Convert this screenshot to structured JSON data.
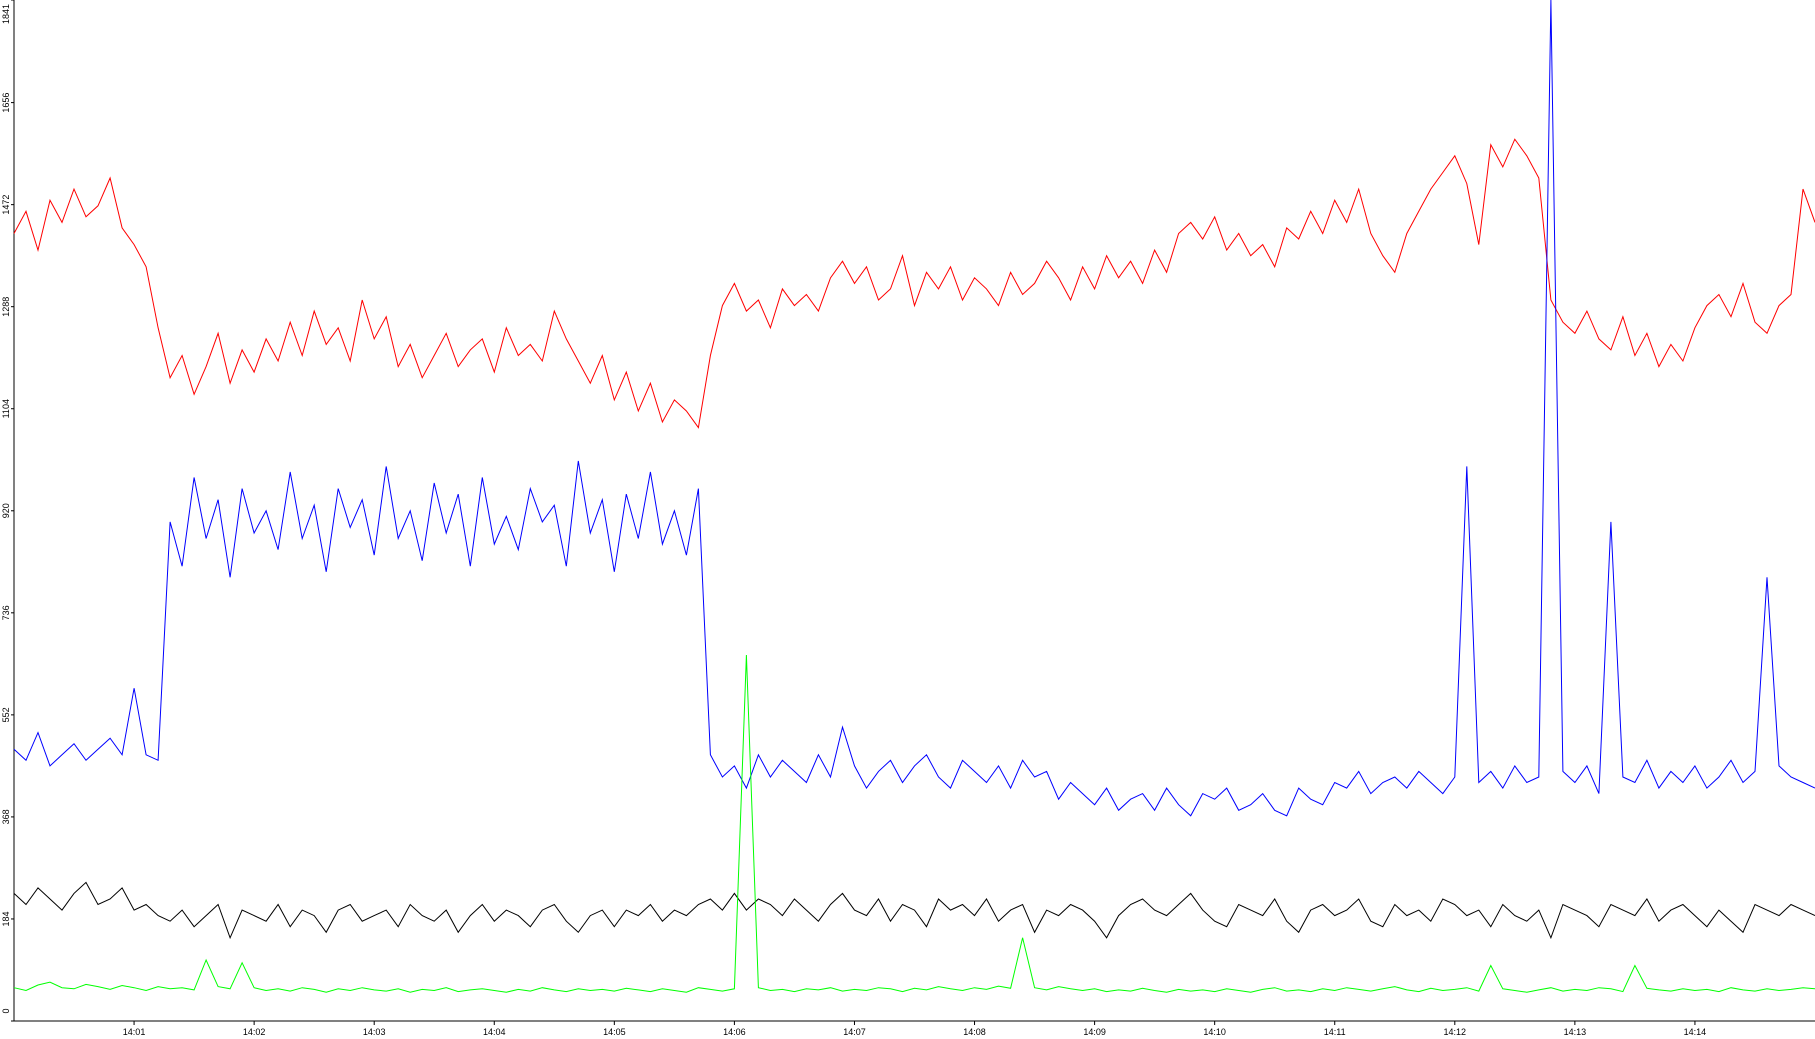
{
  "chart_data": {
    "type": "line",
    "x": [
      0,
      0.1,
      0.2,
      0.3,
      0.4,
      0.5,
      0.6,
      0.7,
      0.8,
      0.9,
      1,
      1.1,
      1.2,
      1.3,
      1.4,
      1.5,
      1.6,
      1.7,
      1.8,
      1.9,
      2,
      2.1,
      2.2,
      2.3,
      2.4,
      2.5,
      2.6,
      2.7,
      2.8,
      2.9,
      3,
      3.1,
      3.2,
      3.3,
      3.4,
      3.5,
      3.6,
      3.7,
      3.8,
      3.9,
      4,
      4.1,
      4.2,
      4.3,
      4.4,
      4.5,
      4.6,
      4.7,
      4.8,
      4.9,
      5,
      5.1,
      5.2,
      5.3,
      5.4,
      5.5,
      5.6,
      5.7,
      5.8,
      5.9,
      6,
      6.1,
      6.2,
      6.3,
      6.4,
      6.5,
      6.6,
      6.7,
      6.8,
      6.9,
      7,
      7.1,
      7.2,
      7.3,
      7.4,
      7.5,
      7.6,
      7.7,
      7.8,
      7.9,
      8,
      8.1,
      8.2,
      8.3,
      8.4,
      8.5,
      8.6,
      8.7,
      8.8,
      8.9,
      9,
      9.1,
      9.2,
      9.3,
      9.4,
      9.5,
      9.6,
      9.7,
      9.8,
      9.9,
      10,
      10.1,
      10.2,
      10.3,
      10.4,
      10.5,
      10.6,
      10.7,
      10.8,
      10.9,
      11,
      11.1,
      11.2,
      11.3,
      11.4,
      11.5,
      11.6,
      11.7,
      11.8,
      11.9,
      12,
      12.1,
      12.2,
      12.3,
      12.4,
      12.5,
      12.6,
      12.7,
      12.8,
      12.9,
      13,
      13.1,
      13.2,
      13.3,
      13.4,
      13.5,
      13.6,
      13.7,
      13.8,
      13.9,
      14,
      14.1,
      14.2,
      14.3,
      14.4,
      14.5,
      14.6,
      14.7,
      14.8,
      14.9,
      15
    ],
    "series": [
      {
        "color": "#ff0000",
        "values": [
          1420,
          1460,
          1390,
          1480,
          1440,
          1500,
          1450,
          1470,
          1520,
          1430,
          1400,
          1360,
          1250,
          1160,
          1200,
          1130,
          1180,
          1240,
          1150,
          1210,
          1170,
          1230,
          1190,
          1260,
          1200,
          1280,
          1220,
          1250,
          1190,
          1300,
          1230,
          1270,
          1180,
          1220,
          1160,
          1200,
          1240,
          1180,
          1210,
          1230,
          1170,
          1250,
          1200,
          1220,
          1190,
          1280,
          1230,
          1190,
          1150,
          1200,
          1120,
          1170,
          1100,
          1150,
          1080,
          1120,
          1100,
          1070,
          1200,
          1290,
          1330,
          1280,
          1300,
          1250,
          1320,
          1290,
          1310,
          1280,
          1340,
          1370,
          1330,
          1360,
          1300,
          1320,
          1380,
          1290,
          1350,
          1320,
          1360,
          1300,
          1340,
          1320,
          1290,
          1350,
          1310,
          1330,
          1370,
          1340,
          1300,
          1360,
          1320,
          1380,
          1340,
          1370,
          1330,
          1390,
          1350,
          1420,
          1440,
          1410,
          1450,
          1390,
          1420,
          1380,
          1400,
          1360,
          1430,
          1410,
          1460,
          1420,
          1480,
          1440,
          1500,
          1420,
          1380,
          1350,
          1420,
          1460,
          1500,
          1530,
          1560,
          1510,
          1400,
          1580,
          1540,
          1590,
          1560,
          1520,
          1300,
          1260,
          1240,
          1280,
          1230,
          1210,
          1270,
          1200,
          1240,
          1180,
          1220,
          1190,
          1250,
          1290,
          1310,
          1270,
          1330,
          1260,
          1240,
          1290,
          1310,
          1500,
          1440
        ]
      },
      {
        "color": "#0000ff",
        "values": [
          490,
          470,
          520,
          460,
          480,
          500,
          470,
          490,
          510,
          480,
          600,
          480,
          470,
          900,
          820,
          980,
          870,
          940,
          800,
          960,
          880,
          920,
          850,
          990,
          870,
          930,
          810,
          960,
          890,
          940,
          840,
          1000,
          870,
          920,
          830,
          970,
          880,
          950,
          820,
          980,
          860,
          910,
          850,
          960,
          900,
          930,
          820,
          1010,
          880,
          940,
          810,
          950,
          870,
          990,
          860,
          920,
          840,
          960,
          480,
          440,
          460,
          420,
          480,
          440,
          470,
          450,
          430,
          480,
          440,
          530,
          460,
          420,
          450,
          470,
          430,
          460,
          480,
          440,
          420,
          470,
          450,
          430,
          460,
          420,
          470,
          440,
          450,
          400,
          430,
          410,
          390,
          420,
          380,
          400,
          410,
          380,
          420,
          390,
          370,
          410,
          400,
          420,
          380,
          390,
          410,
          380,
          370,
          420,
          400,
          390,
          430,
          420,
          450,
          410,
          430,
          440,
          420,
          450,
          430,
          410,
          440,
          1000,
          430,
          450,
          420,
          460,
          430,
          440,
          1841,
          450,
          430,
          460,
          410,
          900,
          440,
          430,
          470,
          420,
          450,
          430,
          460,
          420,
          440,
          470,
          430,
          450,
          800,
          460,
          440,
          430,
          420
        ]
      },
      {
        "color": "#000000",
        "values": [
          230,
          210,
          240,
          220,
          200,
          230,
          250,
          210,
          220,
          240,
          200,
          210,
          190,
          180,
          200,
          170,
          190,
          210,
          150,
          200,
          190,
          180,
          210,
          170,
          200,
          190,
          160,
          200,
          210,
          180,
          190,
          200,
          170,
          210,
          190,
          180,
          200,
          160,
          190,
          210,
          180,
          200,
          190,
          170,
          200,
          210,
          180,
          160,
          190,
          200,
          170,
          200,
          190,
          210,
          180,
          200,
          190,
          210,
          220,
          200,
          230,
          200,
          220,
          210,
          190,
          220,
          200,
          180,
          210,
          230,
          200,
          190,
          220,
          180,
          210,
          200,
          170,
          220,
          200,
          210,
          190,
          220,
          180,
          200,
          210,
          160,
          200,
          190,
          210,
          200,
          180,
          150,
          190,
          210,
          220,
          200,
          190,
          210,
          230,
          200,
          180,
          170,
          210,
          200,
          190,
          220,
          180,
          160,
          200,
          210,
          190,
          200,
          220,
          180,
          170,
          210,
          190,
          200,
          180,
          220,
          210,
          190,
          200,
          170,
          210,
          190,
          180,
          200,
          150,
          210,
          200,
          190,
          170,
          210,
          200,
          190,
          220,
          180,
          200,
          210,
          190,
          170,
          200,
          180,
          160,
          210,
          200,
          190,
          210,
          200,
          190
        ]
      },
      {
        "color": "#00ff00",
        "values": [
          60,
          55,
          65,
          70,
          60,
          58,
          66,
          62,
          57,
          64,
          60,
          55,
          62,
          58,
          60,
          56,
          110,
          62,
          58,
          105,
          60,
          55,
          58,
          54,
          60,
          57,
          52,
          58,
          55,
          60,
          56,
          54,
          58,
          52,
          57,
          55,
          60,
          53,
          56,
          58,
          55,
          52,
          57,
          54,
          60,
          56,
          53,
          58,
          55,
          57,
          54,
          59,
          56,
          53,
          58,
          55,
          52,
          60,
          57,
          54,
          58,
          660,
          60,
          55,
          57,
          53,
          58,
          56,
          60,
          54,
          57,
          55,
          60,
          58,
          53,
          59,
          56,
          62,
          58,
          55,
          60,
          57,
          63,
          59,
          150,
          60,
          56,
          62,
          58,
          55,
          58,
          53,
          56,
          54,
          59,
          55,
          52,
          57,
          54,
          56,
          53,
          58,
          55,
          52,
          57,
          60,
          54,
          56,
          53,
          58,
          55,
          60,
          57,
          54,
          58,
          62,
          56,
          53,
          59,
          55,
          57,
          60,
          54,
          100,
          58,
          55,
          52,
          56,
          60,
          54,
          57,
          55,
          60,
          58,
          53,
          100,
          59,
          56,
          54,
          58,
          55,
          57,
          53,
          60,
          56,
          54,
          58,
          55,
          57,
          60,
          58
        ]
      }
    ],
    "xlim": [
      0,
      15
    ],
    "xticks": [
      {
        "value": 1,
        "label": "14:01"
      },
      {
        "value": 2,
        "label": "14:02"
      },
      {
        "value": 3,
        "label": "14:03"
      },
      {
        "value": 4,
        "label": "14:04"
      },
      {
        "value": 5,
        "label": "14:05"
      },
      {
        "value": 6,
        "label": "14:06"
      },
      {
        "value": 7,
        "label": "14:07"
      },
      {
        "value": 8,
        "label": "14:08"
      },
      {
        "value": 9,
        "label": "14:09"
      },
      {
        "value": 10,
        "label": "14:10"
      },
      {
        "value": 11,
        "label": "14:11"
      },
      {
        "value": 12,
        "label": "14:12"
      },
      {
        "value": 13,
        "label": "14:13"
      },
      {
        "value": 14,
        "label": "14:14"
      }
    ],
    "ylim": [
      0,
      1841
    ],
    "yticks": [
      0,
      184,
      368,
      552,
      736,
      920,
      1104,
      1288,
      1472,
      1656,
      1841
    ]
  }
}
